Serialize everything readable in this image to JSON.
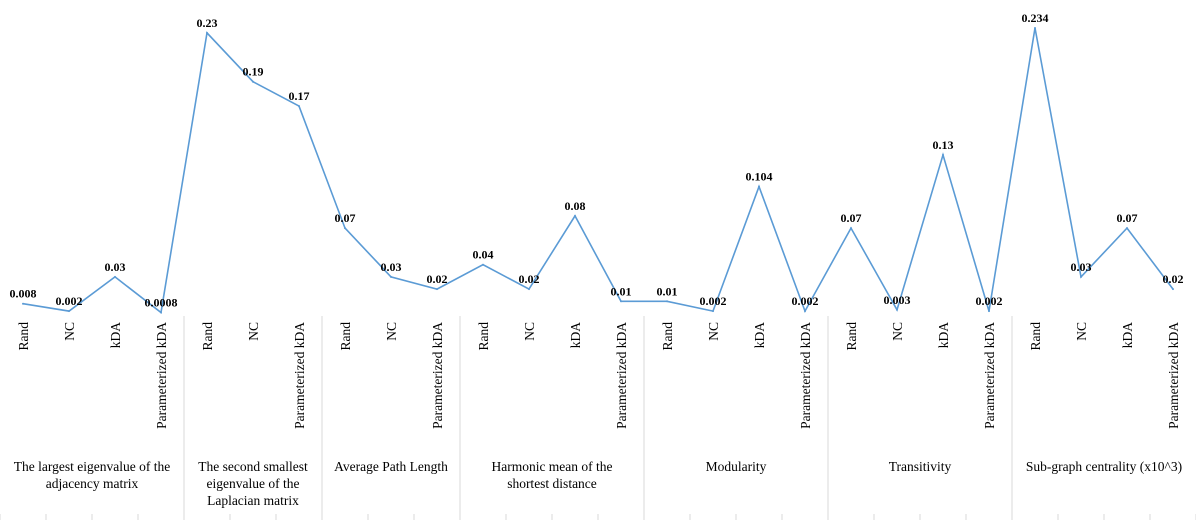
{
  "colors": {
    "series_line": "#5b9bd5",
    "separator": "#d9d9d9",
    "text": "#000000"
  },
  "chart_data": {
    "type": "line",
    "title": "",
    "xlabel": "",
    "ylabel": "",
    "ylim": [
      0,
      0.24
    ],
    "grid": false,
    "legend": "none",
    "groups": [
      {
        "label_lines": [
          "The largest eigenvalue of the",
          "adjacency matrix"
        ],
        "categories": [
          "Rand",
          "NC",
          "kDA",
          "Parameterized kDA"
        ]
      },
      {
        "label_lines": [
          "The second smallest",
          "eigenvalue of the",
          "Laplacian matrix"
        ],
        "categories": [
          "Rand",
          "NC",
          "Parameterized kDA"
        ]
      },
      {
        "label_lines": [
          "Average Path Length"
        ],
        "categories": [
          "Rand",
          "NC",
          "Parameterized kDA"
        ]
      },
      {
        "label_lines": [
          "Harmonic mean of the",
          "shortest distance"
        ],
        "categories": [
          "Rand",
          "NC",
          "kDA",
          "Parameterized kDA"
        ]
      },
      {
        "label_lines": [
          "Modularity"
        ],
        "categories": [
          "Rand",
          "NC",
          "kDA",
          "Parameterized kDA"
        ]
      },
      {
        "label_lines": [
          "Transitivity"
        ],
        "categories": [
          "Rand",
          "NC",
          "kDA",
          "Parameterized kDA"
        ]
      },
      {
        "label_lines": [
          "Sub-graph centrality (x10^3)"
        ],
        "categories": [
          "Rand",
          "NC",
          "kDA",
          "Parameterized kDA"
        ]
      }
    ],
    "series": [
      {
        "values": [
          0.008,
          0.002,
          0.03,
          0.0008,
          0.23,
          0.19,
          0.17,
          0.07,
          0.03,
          0.02,
          0.04,
          0.02,
          0.08,
          0.01,
          0.01,
          0.002,
          0.104,
          0.002,
          0.07,
          0.003,
          0.13,
          0.002,
          0.234,
          0.03,
          0.07,
          0.02
        ],
        "labels": [
          "0.008",
          "0.002",
          "0.03",
          "0.0008",
          "0.23",
          "0.19",
          "0.17",
          "0.07",
          "0.03",
          "0.02",
          "0.04",
          "0.02",
          "0.08",
          "0.01",
          "0.01",
          "0.002",
          "0.104",
          "0.002",
          "0.07",
          "0.003",
          "0.13",
          "0.002",
          "0.234",
          "0.03",
          "0.07",
          "0.02"
        ]
      }
    ]
  }
}
